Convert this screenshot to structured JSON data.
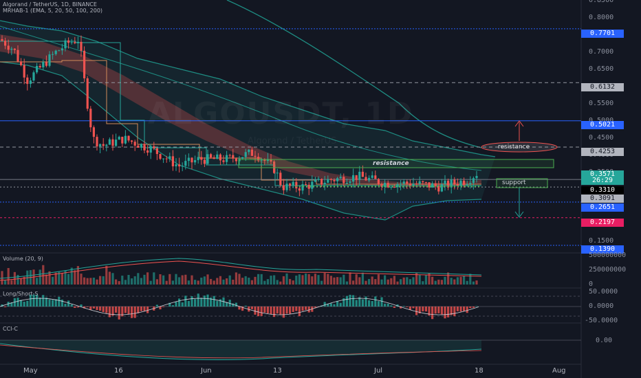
{
  "header": {
    "symbol_line": "Algorand / TetherUS, 1D, BINANCE",
    "indicator_line": "MRHAB-1 (EMA, 5, 20, 50, 100, 200)"
  },
  "watermark": "ALGOUSDT, 1D",
  "watermark_sub": "Algorand / TetherUS",
  "price_axis": {
    "labels": [
      "0.8500",
      "0.8000",
      "0.7500",
      "0.7000",
      "0.6500",
      "0.6000",
      "0.5500",
      "0.5000",
      "0.4500",
      "0.4000",
      "0.3500",
      "0.3000",
      "0.2500",
      "0.2000",
      "0.1500"
    ]
  },
  "price_tags": [
    {
      "label": "0.7701",
      "bg": "#2962ff",
      "fg": "#ffffff"
    },
    {
      "label": "0.6132",
      "bg": "#b2b5be",
      "fg": "#131722"
    },
    {
      "label": "0.5021",
      "bg": "#2962ff",
      "fg": "#ffffff"
    },
    {
      "label": "0.4253",
      "bg": "#b2b5be",
      "fg": "#131722"
    },
    {
      "label": "0.3571",
      "bg": "#26a69a",
      "fg": "#ffffff"
    },
    {
      "label": "26:29",
      "bg": "#26a69a",
      "fg": "#ffffff"
    },
    {
      "label": "0.3310",
      "bg": "#000000",
      "fg": "#ffffff"
    },
    {
      "label": "0.3091",
      "bg": "#b2b5be",
      "fg": "#131722"
    },
    {
      "label": "0.2651",
      "bg": "#2962ff",
      "fg": "#ffffff"
    },
    {
      "label": "0.2197",
      "bg": "#e91e63",
      "fg": "#ffffff"
    },
    {
      "label": "0.1390",
      "bg": "#2962ff",
      "fg": "#ffffff"
    }
  ],
  "annotations": {
    "resistance_upper": "resistance",
    "resistance_box": "resistance",
    "support_box": "support"
  },
  "volume_pane": {
    "title": "Volume (20, 9)",
    "labels": [
      "500000000",
      "250000000",
      "0"
    ]
  },
  "longshort_pane": {
    "title": "Long/Short-S",
    "labels": [
      "50.0000",
      "0.0000",
      "-50.0000"
    ]
  },
  "cci_pane": {
    "title": "CCI-C",
    "labels": [
      "0.00"
    ]
  },
  "time_axis": [
    "May",
    "16",
    "Jun",
    "13",
    "Jul",
    "18",
    "Aug"
  ],
  "colors": {
    "background": "#131722",
    "up": "#26a69a",
    "down": "#ef5350",
    "blue_line": "#2962ff",
    "pink_line": "#e91e63"
  }
}
